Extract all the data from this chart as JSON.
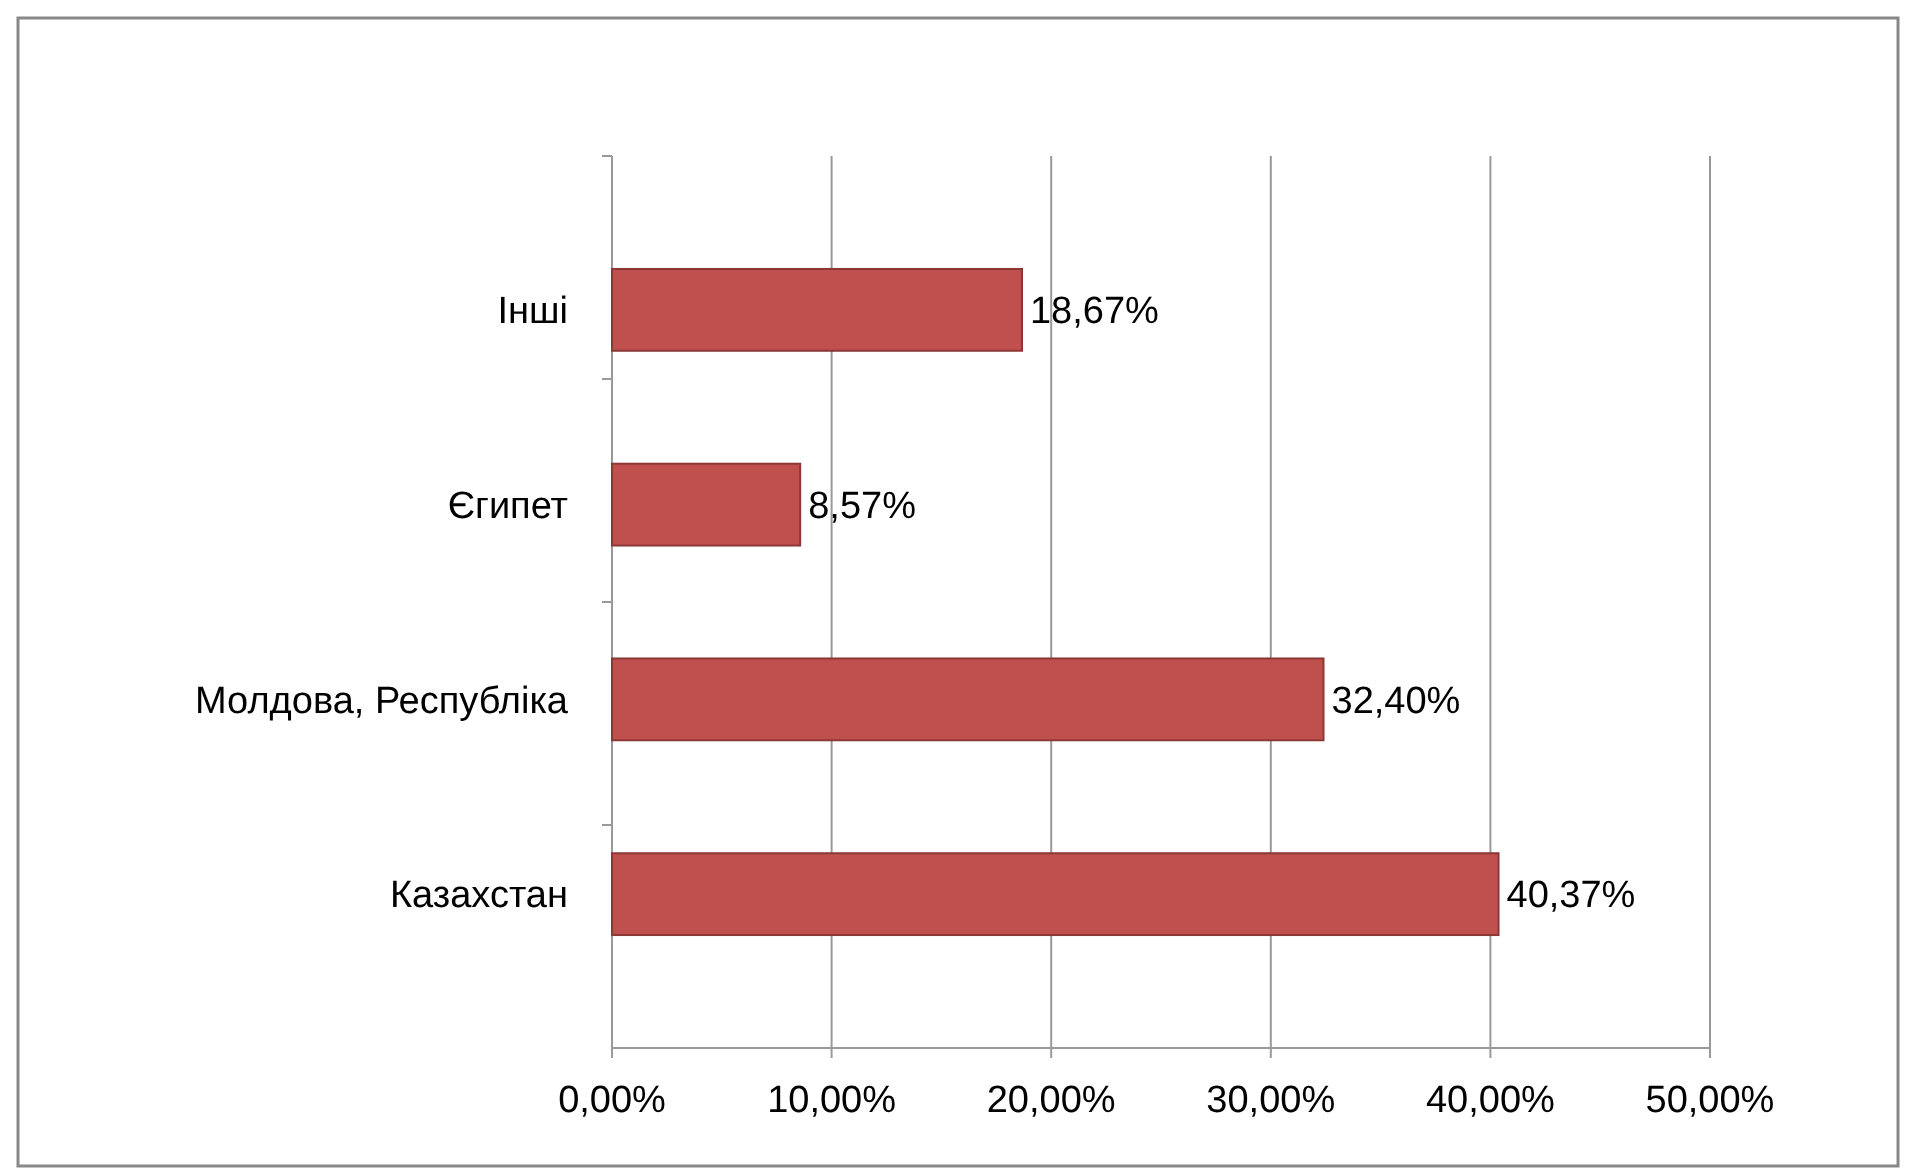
{
  "chart_data": {
    "type": "bar",
    "orientation": "horizontal",
    "categories": [
      "Інші",
      "Єгипет",
      "Молдова, Республіка",
      "Казахстан"
    ],
    "values": [
      18.67,
      8.57,
      32.4,
      40.37
    ],
    "color": "#c0504d",
    "value_labels": [
      "18,67%",
      "8,57%",
      "32,40%",
      "40,37%"
    ],
    "xlim": [
      0,
      50
    ],
    "xticks": [
      {
        "value": 0,
        "label": "0,00%"
      },
      {
        "value": 10,
        "label": "10,00%"
      },
      {
        "value": 20,
        "label": "20,00%"
      },
      {
        "value": 30,
        "label": "30,00%"
      },
      {
        "value": 40,
        "label": "40,00%"
      },
      {
        "value": 50,
        "label": "50,00%"
      }
    ],
    "grid": "x"
  }
}
